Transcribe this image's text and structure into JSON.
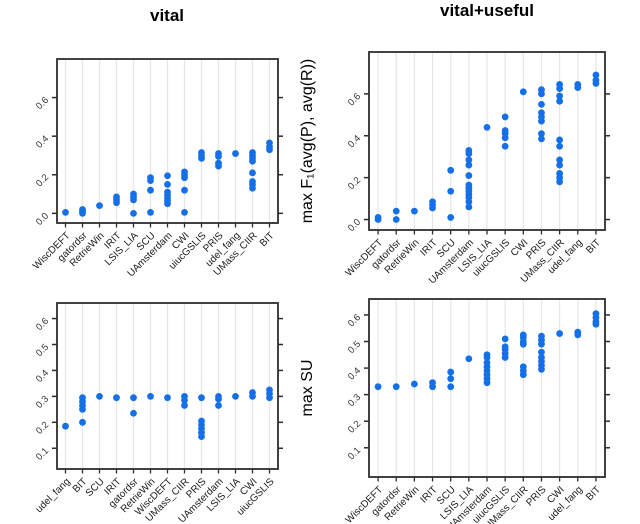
{
  "figure": {
    "kind": "strip-plot-grid",
    "background_color": "#ffffff",
    "point_color": "#1570e8",
    "gridline_color": "#e6e6e6",
    "frame_color": "#2d2d2d"
  },
  "chart_data": {
    "type": "scatter",
    "subtype": "strip-dot-columns",
    "columns": [
      "vital",
      "vital+useful"
    ],
    "row_ylabels": [
      "max F₁(avg(P), avg(R))",
      "max SU"
    ],
    "legend": "none",
    "grid": "vertical-per-category",
    "panels": [
      {
        "row": 0,
        "col": 0,
        "title": "vital",
        "metric": "max F1(avg(P), avg(R))",
        "ylim": [
          -0.05,
          0.8
        ],
        "ytick_labels": [
          "0.0",
          "0.2",
          "0.4",
          "0.6"
        ],
        "yticks": [
          0.0,
          0.2,
          0.4,
          0.6
        ],
        "categories": [
          "WiscDEFT",
          "gatordsr",
          "RetrieWin",
          "IRIT",
          "LSIS_LIA",
          "SCU",
          "UAmsterdam",
          "CWI",
          "uiucGSLIS",
          "PRIS",
          "udel_fang",
          "UMass_CIIR",
          "BIT"
        ],
        "values": [
          [
            0.005
          ],
          [
            0.0,
            0.01,
            0.02
          ],
          [
            0.04
          ],
          [
            0.055,
            0.07,
            0.085
          ],
          [
            0.0,
            0.07,
            0.085,
            0.1
          ],
          [
            0.005,
            0.12,
            0.17,
            0.185
          ],
          [
            0.05,
            0.065,
            0.08,
            0.095,
            0.11,
            0.15,
            0.195
          ],
          [
            0.005,
            0.12,
            0.185,
            0.2,
            0.215
          ],
          [
            0.285,
            0.3,
            0.315
          ],
          [
            0.245,
            0.26,
            0.295,
            0.31
          ],
          [
            0.31
          ],
          [
            0.13,
            0.15,
            0.165,
            0.21,
            0.27,
            0.285,
            0.3,
            0.315
          ],
          [
            0.33,
            0.345,
            0.365
          ]
        ]
      },
      {
        "row": 0,
        "col": 1,
        "title": "vital+useful",
        "metric": "max F1(avg(P), avg(R))",
        "ylim": [
          -0.05,
          0.8
        ],
        "ytick_labels": [
          "0.0",
          "0.2",
          "0.4",
          "0.6"
        ],
        "yticks": [
          0.0,
          0.2,
          0.4,
          0.6
        ],
        "categories": [
          "WiscDEFT",
          "gatordsr",
          "RetrieWin",
          "IRIT",
          "SCU",
          "UAmsterdam",
          "LSIS_LIA",
          "uiucGSLIS",
          "CWI",
          "PRIS",
          "UMass_CIIR",
          "udel_fang",
          "BIT"
        ],
        "values": [
          [
            0.0,
            0.01
          ],
          [
            0.0,
            0.04
          ],
          [
            0.04
          ],
          [
            0.055,
            0.07,
            0.085
          ],
          [
            0.01,
            0.135,
            0.235
          ],
          [
            0.06,
            0.085,
            0.105,
            0.12,
            0.135,
            0.15,
            0.165,
            0.21,
            0.26,
            0.285,
            0.315,
            0.33
          ],
          [
            0.44
          ],
          [
            0.35,
            0.39,
            0.41,
            0.425,
            0.49
          ],
          [
            0.61
          ],
          [
            0.385,
            0.41,
            0.47,
            0.49,
            0.51,
            0.55,
            0.6,
            0.62
          ],
          [
            0.18,
            0.2,
            0.22,
            0.26,
            0.285,
            0.35,
            0.38,
            0.565,
            0.59,
            0.625,
            0.645
          ],
          [
            0.63,
            0.645
          ],
          [
            0.65,
            0.665,
            0.69
          ]
        ]
      },
      {
        "row": 1,
        "col": 0,
        "title": "vital",
        "metric": "max SU",
        "ylim": [
          0.02,
          0.66
        ],
        "ytick_labels": [
          "0.1",
          "0.2",
          "0.3",
          "0.4",
          "0.5",
          "0.6"
        ],
        "yticks": [
          0.1,
          0.2,
          0.3,
          0.4,
          0.5,
          0.6
        ],
        "categories": [
          "udel_fang",
          "BIT",
          "SCU",
          "IRIT",
          "gatordsr",
          "RetrieWin",
          "WiscDEFT",
          "UMass_CIIR",
          "PRIS",
          "UAmsterdam",
          "LSIS_LIA",
          "CWI",
          "uiucGSLIS"
        ],
        "values": [
          [
            0.185
          ],
          [
            0.2,
            0.25,
            0.265,
            0.28,
            0.295
          ],
          [
            0.3
          ],
          [
            0.295
          ],
          [
            0.235,
            0.295
          ],
          [
            0.3
          ],
          [
            0.295
          ],
          [
            0.265,
            0.285,
            0.3
          ],
          [
            0.145,
            0.16,
            0.175,
            0.19,
            0.205,
            0.295
          ],
          [
            0.265,
            0.29,
            0.3
          ],
          [
            0.3
          ],
          [
            0.3,
            0.315
          ],
          [
            0.295,
            0.31,
            0.325
          ]
        ]
      },
      {
        "row": 1,
        "col": 1,
        "title": "vital+useful",
        "metric": "max SU",
        "ylim": [
          -0.01,
          0.66
        ],
        "ytick_labels": [
          "0.1",
          "0.2",
          "0.3",
          "0.4",
          "0.5",
          "0.6"
        ],
        "yticks": [
          0.1,
          0.2,
          0.3,
          0.4,
          0.5,
          0.6
        ],
        "categories": [
          "WiscDEFT",
          "gatordsr",
          "RetrieWin",
          "IRIT",
          "SCU",
          "LSIS_LIA",
          "UAmsterdam",
          "uiucGSLIS",
          "UMass_CIIR",
          "PRIS",
          "CWI",
          "udel_fang",
          "BIT"
        ],
        "values": [
          [
            0.33
          ],
          [
            0.33
          ],
          [
            0.34
          ],
          [
            0.33,
            0.345
          ],
          [
            0.33,
            0.36,
            0.385
          ],
          [
            0.435
          ],
          [
            0.345,
            0.36,
            0.375,
            0.39,
            0.405,
            0.42,
            0.44,
            0.45
          ],
          [
            0.44,
            0.455,
            0.47,
            0.48,
            0.51
          ],
          [
            0.375,
            0.39,
            0.405,
            0.49,
            0.5,
            0.515,
            0.525
          ],
          [
            0.395,
            0.41,
            0.425,
            0.44,
            0.46,
            0.49,
            0.505,
            0.52
          ],
          [
            0.53
          ],
          [
            0.525,
            0.535
          ],
          [
            0.565,
            0.575,
            0.59,
            0.605
          ]
        ]
      }
    ]
  }
}
